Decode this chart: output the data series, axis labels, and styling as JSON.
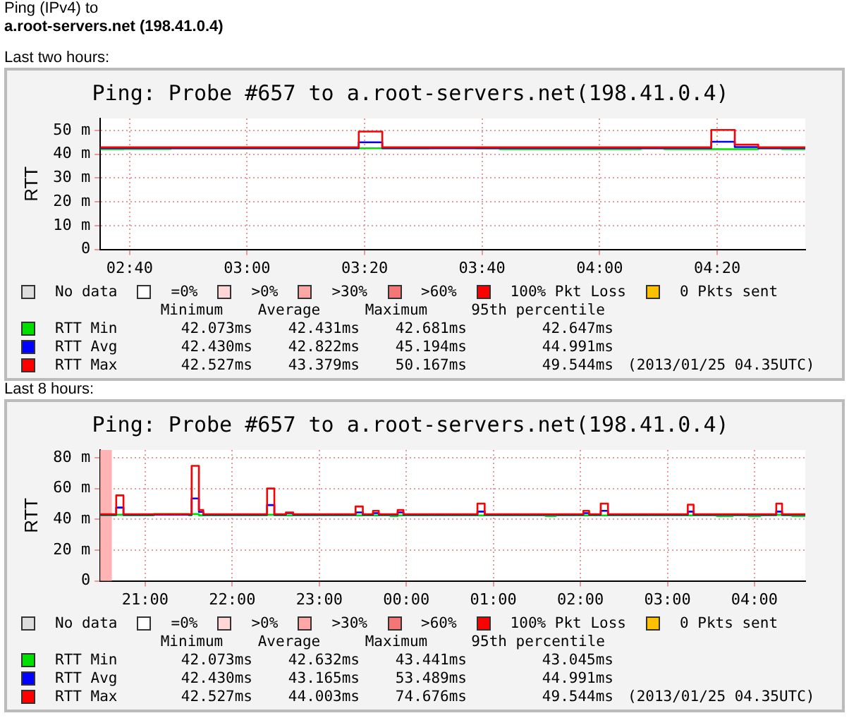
{
  "chart_data": [
    {
      "type": "step",
      "title": "Ping: Probe #657 to a.root-servers.net(198.41.0.4)",
      "ylabel": "RTT",
      "annotations": [
        "Ping (IPv4) to",
        "a.root-servers.net (198.41.0.4)",
        "Last two hours:",
        "No data",
        "=0%",
        ">0%",
        ">30%",
        ">60%",
        "100% Pkt Loss",
        "0 Pkts sent",
        "Minimum",
        "Average",
        "Maximum",
        "95th percentile",
        "42.073ms",
        "42.431ms",
        "42.681ms",
        "42.647ms",
        "42.430ms",
        "42.822ms",
        "45.194ms",
        "44.991ms",
        "42.527ms",
        "43.379ms",
        "50.167ms",
        "49.544ms",
        "(2013/01/25 04.35UTC)"
      ],
      "series": [
        {
          "name": "RTT Min",
          "color": "#00e000",
          "x": [
            "2013-01-25T02:35",
            "2013-01-25T02:39",
            "2013-01-25T02:47",
            "2013-01-25T03:19",
            "2013-01-25T03:23",
            "2013-01-25T03:31",
            "2013-01-25T03:39",
            "2013-01-25T03:43",
            "2013-01-25T04:07",
            "2013-01-25T04:11",
            "2013-01-25T04:27",
            "2013-01-25T04:31",
            "2013-01-25T04:35"
          ],
          "values": [
            42.1,
            42.2,
            42.4,
            42.5,
            42.4,
            42.5,
            42.4,
            42.1,
            42.4,
            42.1,
            42.4,
            42.1,
            42.1
          ]
        },
        {
          "name": "RTT Avg",
          "color": "#0000ff",
          "x": [
            "2013-01-25T02:35",
            "2013-01-25T03:19",
            "2013-01-25T03:23",
            "2013-01-25T04:19",
            "2013-01-25T04:23",
            "2013-01-25T04:27",
            "2013-01-25T04:35"
          ],
          "values": [
            42.6,
            45.0,
            42.6,
            45.2,
            43.0,
            42.6,
            42.6
          ]
        },
        {
          "name": "RTT Max",
          "color": "#ff0000",
          "x": [
            "2013-01-25T02:35",
            "2013-01-25T03:19",
            "2013-01-25T03:23",
            "2013-01-25T04:19",
            "2013-01-25T04:23",
            "2013-01-25T04:27",
            "2013-01-25T04:35"
          ],
          "values": [
            42.9,
            49.5,
            42.9,
            50.2,
            44.0,
            42.9,
            42.9
          ]
        }
      ],
      "xlim": [
        "2013-01-25T02:35",
        "2013-01-25T04:35"
      ],
      "xticks": [
        {
          "value": "2013-01-25T02:40",
          "label": "02:40"
        },
        {
          "value": "2013-01-25T03:00",
          "label": "03:00"
        },
        {
          "value": "2013-01-25T03:20",
          "label": "03:20"
        },
        {
          "value": "2013-01-25T03:40",
          "label": "03:40"
        },
        {
          "value": "2013-01-25T04:00",
          "label": "04:00"
        },
        {
          "value": "2013-01-25T04:20",
          "label": "04:20"
        }
      ],
      "ylim": [
        0,
        55
      ],
      "yticks": [
        0,
        {
          "value": 10,
          "label": "10 m"
        },
        {
          "value": 20,
          "label": "20 m"
        },
        {
          "value": 30,
          "label": "30 m"
        },
        {
          "value": 40,
          "label": "40 m"
        },
        {
          "value": 50,
          "label": "50 m"
        }
      ],
      "grid": true,
      "legend": "bottom"
    },
    {
      "type": "step",
      "title": "Ping: Probe #657 to a.root-servers.net(198.41.0.4)",
      "ylabel": "RTT",
      "annotations": [
        "Last 8 hours:",
        "No data",
        "=0%",
        ">0%",
        ">30%",
        ">60%",
        "100% Pkt Loss",
        "0 Pkts sent",
        "Minimum",
        "Average",
        "Maximum",
        "95th percentile",
        "42.073ms",
        "42.632ms",
        "43.441ms",
        "43.045ms",
        "42.430ms",
        "43.165ms",
        "53.489ms",
        "44.991ms",
        "42.527ms",
        "44.003ms",
        "74.676ms",
        "49.544ms",
        "(2013/01/25 04.35UTC)"
      ],
      "series": [
        {
          "name": "RTT Min",
          "color": "#00e000",
          "x": [
            "2013-01-24T20:29",
            "2013-01-24T20:40",
            "2013-01-24T20:45",
            "2013-01-24T21:06",
            "2013-01-24T21:30",
            "2013-01-24T21:32",
            "2013-01-24T21:37",
            "2013-01-24T22:24",
            "2013-01-24T22:29",
            "2013-01-24T23:49",
            "2013-01-24T23:54",
            "2013-01-25T01:36",
            "2013-01-25T01:43",
            "2013-01-25T03:34",
            "2013-01-25T03:45",
            "2013-01-25T03:56",
            "2013-01-25T04:04",
            "2013-01-25T04:15",
            "2013-01-25T04:19",
            "2013-01-25T04:26",
            "2013-01-25T04:35"
          ],
          "values": [
            42.6,
            43,
            42.6,
            43.4,
            42.6,
            43.4,
            42.6,
            43,
            42.5,
            42.1,
            42.5,
            42.1,
            42.5,
            42.1,
            42.5,
            42.1,
            42.5,
            43,
            42.5,
            42.1,
            42.1
          ]
        },
        {
          "name": "RTT Avg",
          "color": "#0000ff",
          "x": [
            "2013-01-24T20:29",
            "2013-01-24T20:40",
            "2013-01-24T20:45",
            "2013-01-24T21:32",
            "2013-01-24T21:37",
            "2013-01-24T21:40",
            "2013-01-24T22:24",
            "2013-01-24T22:29",
            "2013-01-24T22:37",
            "2013-01-24T22:42",
            "2013-01-24T23:25",
            "2013-01-24T23:30",
            "2013-01-24T23:37",
            "2013-01-24T23:41",
            "2013-01-24T23:54",
            "2013-01-24T23:58",
            "2013-01-25T00:49",
            "2013-01-25T00:54",
            "2013-01-25T02:02",
            "2013-01-25T02:06",
            "2013-01-25T02:14",
            "2013-01-25T02:19",
            "2013-01-25T03:14",
            "2013-01-25T03:18",
            "2013-01-25T04:15",
            "2013-01-25T04:19",
            "2013-01-25T04:35"
          ],
          "values": [
            43,
            47.6,
            43,
            53.5,
            44.8,
            43,
            49.2,
            43,
            44,
            43,
            44.5,
            43,
            44,
            43,
            44.5,
            43,
            45,
            43,
            44,
            43,
            45.5,
            43,
            45,
            43,
            45,
            43,
            43
          ]
        },
        {
          "name": "RTT Max",
          "color": "#ff0000",
          "x": [
            "2013-01-24T20:29",
            "2013-01-24T20:40",
            "2013-01-24T20:45",
            "2013-01-24T21:32",
            "2013-01-24T21:37",
            "2013-01-24T21:40",
            "2013-01-24T22:24",
            "2013-01-24T22:29",
            "2013-01-24T22:37",
            "2013-01-24T22:42",
            "2013-01-24T23:25",
            "2013-01-24T23:30",
            "2013-01-24T23:37",
            "2013-01-24T23:41",
            "2013-01-24T23:54",
            "2013-01-24T23:58",
            "2013-01-25T00:49",
            "2013-01-25T00:54",
            "2013-01-25T02:02",
            "2013-01-25T02:06",
            "2013-01-25T02:14",
            "2013-01-25T02:19",
            "2013-01-25T03:14",
            "2013-01-25T03:18",
            "2013-01-25T04:15",
            "2013-01-25T04:19",
            "2013-01-25T04:35"
          ],
          "values": [
            43.3,
            55.5,
            43.3,
            74.7,
            46,
            43.3,
            60,
            43.3,
            44.5,
            43.3,
            48.3,
            43.3,
            45.5,
            43.3,
            46,
            43.3,
            50.2,
            43.3,
            45.5,
            43.3,
            50.2,
            43.3,
            49.5,
            43.3,
            50.2,
            43.3,
            43.3
          ]
        }
      ],
      "bands": [
        {
          "axis": "x",
          "from": "2013-01-24T20:29",
          "to": "2013-01-24T20:37",
          "color": "#ffb3b3"
        }
      ],
      "xlim": [
        "2013-01-24T20:29",
        "2013-01-25T04:35"
      ],
      "xticks": [
        {
          "value": "2013-01-24T21:00",
          "label": "21:00"
        },
        {
          "value": "2013-01-24T22:00",
          "label": "22:00"
        },
        {
          "value": "2013-01-24T23:00",
          "label": "23:00"
        },
        {
          "value": "2013-01-25T00:00",
          "label": "00:00"
        },
        {
          "value": "2013-01-25T01:00",
          "label": "01:00"
        },
        {
          "value": "2013-01-25T02:00",
          "label": "02:00"
        },
        {
          "value": "2013-01-25T03:00",
          "label": "03:00"
        },
        {
          "value": "2013-01-25T04:00",
          "label": "04:00"
        }
      ],
      "ylim": [
        0,
        85
      ],
      "yticks": [
        0,
        {
          "value": 20,
          "label": "20 m"
        },
        {
          "value": 40,
          "label": "40 m"
        },
        {
          "value": 60,
          "label": "60 m"
        },
        {
          "value": 80,
          "label": "80 m"
        }
      ],
      "grid": true,
      "legend": "bottom"
    }
  ]
}
